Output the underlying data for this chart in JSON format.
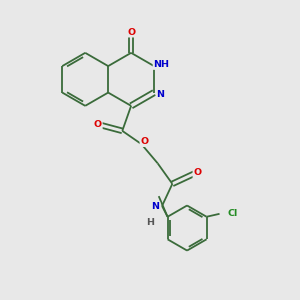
{
  "background_color": "#e8e8e8",
  "bond_color": "#3a6b3a",
  "atom_colors": {
    "O": "#dd0000",
    "N": "#0000cc",
    "H": "#555555",
    "Cl": "#228B22",
    "C": "#3a6b3a"
  },
  "figsize": [
    3.0,
    3.0
  ],
  "dpi": 100,
  "lw": 1.3,
  "fs": 6.8
}
